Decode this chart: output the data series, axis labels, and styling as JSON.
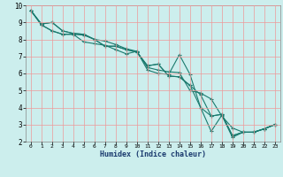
{
  "xlabel": "Humidex (Indice chaleur)",
  "bg_color": "#cceeed",
  "grid_color": "#ee9999",
  "line_color": "#1a7a6e",
  "xlim": [
    -0.5,
    23.5
  ],
  "ylim": [
    2,
    10
  ],
  "xticks": [
    0,
    1,
    2,
    3,
    4,
    5,
    6,
    7,
    8,
    9,
    10,
    11,
    12,
    13,
    14,
    15,
    16,
    17,
    18,
    19,
    20,
    21,
    22,
    23
  ],
  "yticks": [
    2,
    3,
    4,
    5,
    6,
    7,
    8,
    9,
    10
  ],
  "curves": [
    {
      "x": [
        0,
        1,
        2,
        3,
        4,
        5,
        6,
        7,
        8,
        9,
        10,
        11,
        12,
        13,
        14,
        15,
        16,
        17,
        18,
        19,
        20,
        21,
        22,
        23
      ],
      "y": [
        9.7,
        8.85,
        8.5,
        8.3,
        8.3,
        7.85,
        7.75,
        7.65,
        7.4,
        7.15,
        7.3,
        6.2,
        6.0,
        5.95,
        7.1,
        5.95,
        4.0,
        2.6,
        3.55,
        2.25,
        2.55,
        2.55,
        2.75,
        3.0
      ]
    },
    {
      "x": [
        0,
        1,
        2,
        3,
        4,
        5,
        6,
        7,
        8,
        9,
        10,
        11,
        12,
        13,
        14,
        15,
        16,
        17,
        18,
        19,
        20,
        21,
        22,
        23
      ],
      "y": [
        9.7,
        8.85,
        8.5,
        8.3,
        8.3,
        8.25,
        8.0,
        7.9,
        7.7,
        7.45,
        7.3,
        6.35,
        6.2,
        6.1,
        6.05,
        5.0,
        4.85,
        4.5,
        3.5,
        2.8,
        2.55,
        2.55,
        2.75,
        3.0
      ]
    },
    {
      "x": [
        0,
        1,
        2,
        3,
        4,
        5,
        6,
        7,
        8,
        9,
        10,
        11,
        12,
        13,
        14,
        15,
        16,
        17,
        18,
        19,
        20,
        21,
        22,
        23
      ],
      "y": [
        9.7,
        8.9,
        9.0,
        8.5,
        8.35,
        8.3,
        8.0,
        7.6,
        7.6,
        7.4,
        7.25,
        6.45,
        6.55,
        5.85,
        5.8,
        5.3,
        4.0,
        3.5,
        3.6,
        2.35,
        2.55,
        2.55,
        2.75,
        3.0
      ]
    },
    {
      "x": [
        0,
        1,
        2,
        3,
        4,
        5,
        6,
        7,
        8,
        9,
        10,
        11,
        12,
        13,
        14,
        15,
        16,
        17,
        18,
        19,
        20,
        21,
        22,
        23
      ],
      "y": [
        9.7,
        8.9,
        9.0,
        8.5,
        8.35,
        8.3,
        8.0,
        7.6,
        7.6,
        7.4,
        7.25,
        6.45,
        6.55,
        5.85,
        5.8,
        5.3,
        4.75,
        3.5,
        3.6,
        2.35,
        2.55,
        2.55,
        2.75,
        3.0
      ]
    }
  ]
}
